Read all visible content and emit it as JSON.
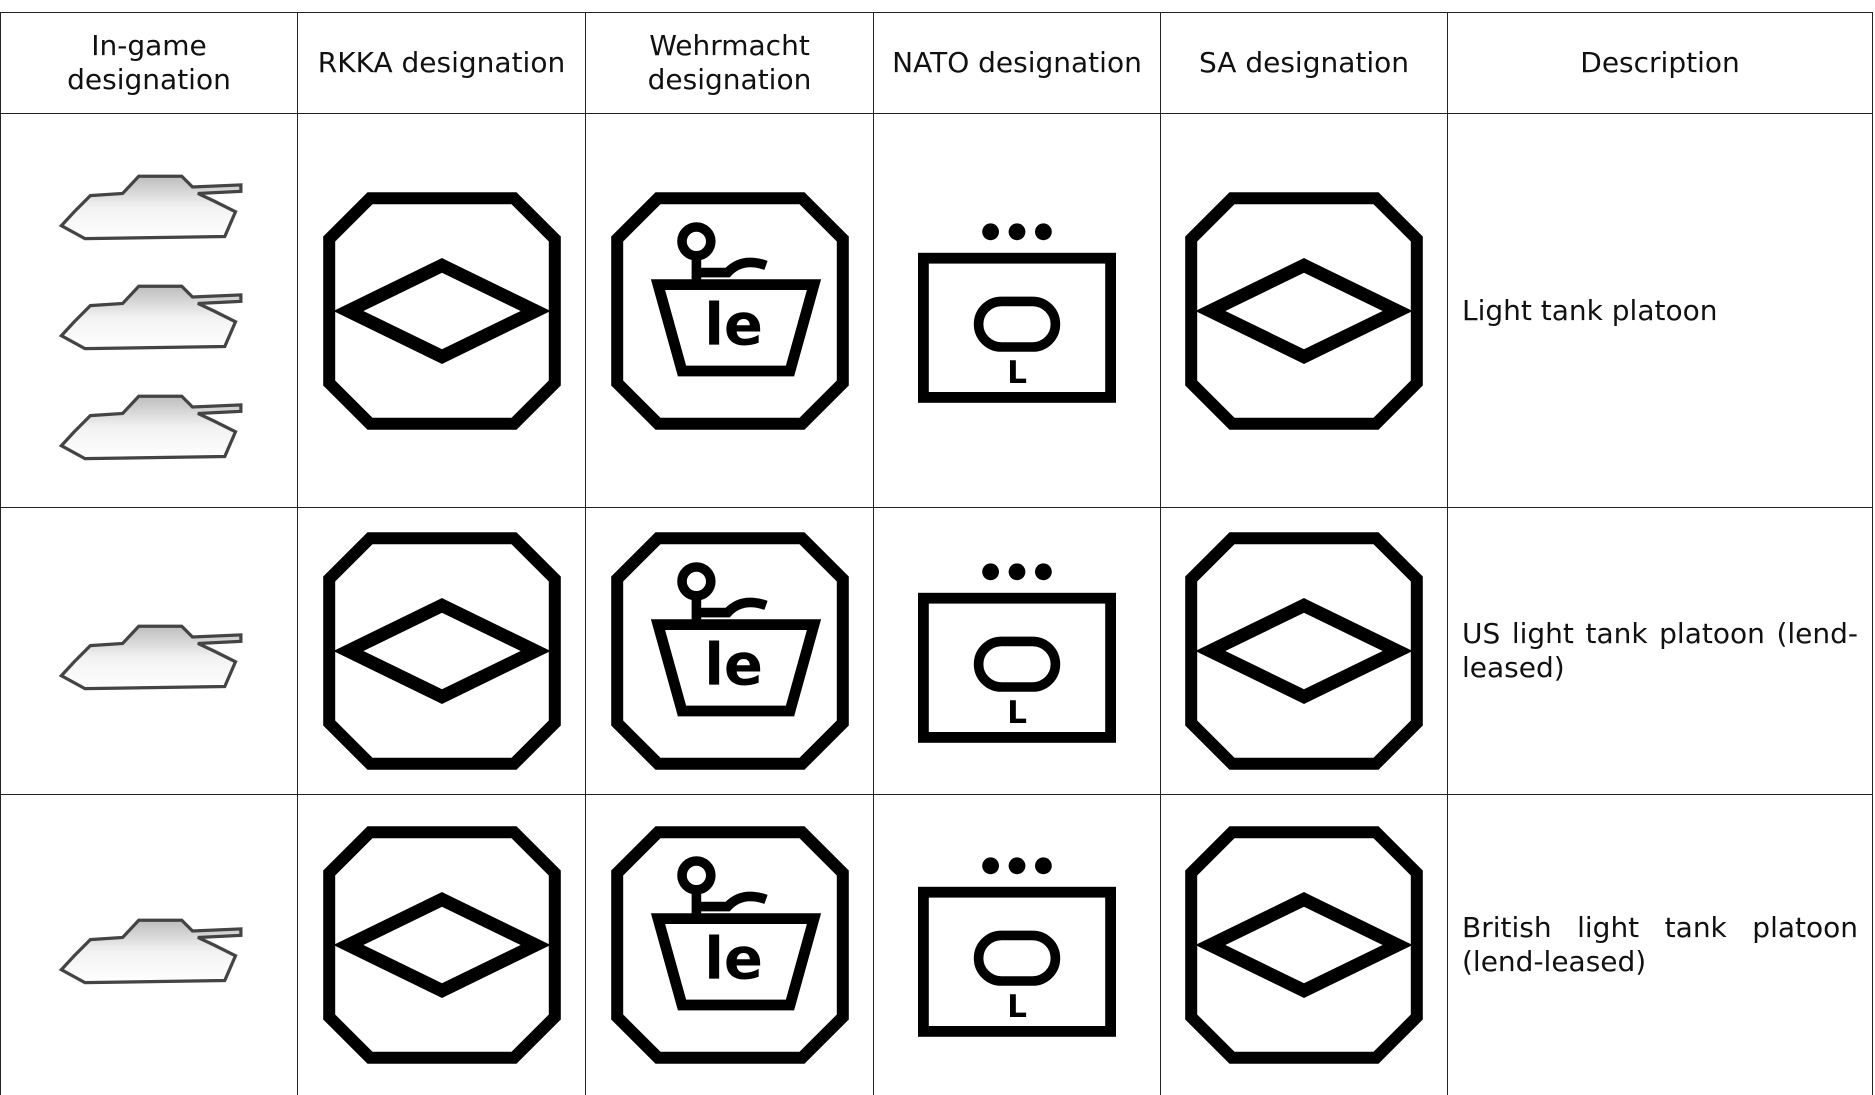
{
  "table": {
    "headers": [
      "In-game designation",
      "RKKA designation",
      "Wehrmacht designation",
      "NATO designation",
      "SA designation",
      "Description"
    ],
    "symbols": {
      "wehrmacht": "le",
      "nato": "L"
    },
    "rows": [
      [
        "Light tank platoon"
      ],
      [
        "US light tank platoon (lend-leased)"
      ],
      [
        "British light tank platoon (lend-leased)"
      ]
    ]
  }
}
